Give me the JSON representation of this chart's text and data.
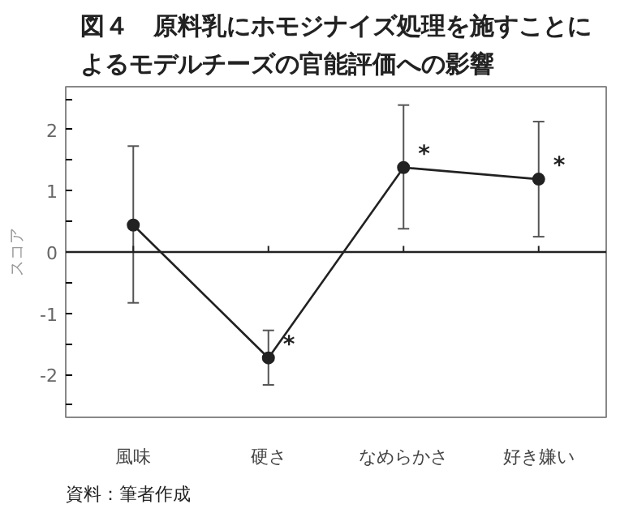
{
  "chart_data": {
    "type": "line",
    "title": "図４　原料乳にホモジナイズ処理を施すことによるモデルチーズの官能評価への影響",
    "ylabel": "スコア",
    "categories": [
      "風味",
      "硬さ",
      "なめらかさ",
      "好き嫌い"
    ],
    "series": [
      {
        "color": "#222222",
        "values": [
          0.44,
          -1.73,
          1.38,
          1.19
        ],
        "errors": [
          [
            -0.83,
            1.73
          ],
          [
            -2.17,
            -1.28
          ],
          [
            0.38,
            2.4
          ],
          [
            0.25,
            2.13
          ]
        ]
      }
    ],
    "marker": "circle",
    "line_style": "solid",
    "grid": false,
    "ylim": [
      -2.7,
      2.7
    ],
    "yticks": [
      -2,
      {
        "value": -2.5,
        "label": null
      },
      {
        "value": -1.5,
        "label": null
      },
      -1,
      {
        "value": -0.5,
        "label": null
      },
      0,
      {
        "value": 0.5,
        "label": null
      },
      1,
      {
        "value": 1.5,
        "label": null
      },
      2,
      {
        "value": 2.5,
        "label": null
      }
    ],
    "ref_lines": [
      {
        "axis": "y",
        "value": 0,
        "color": "#222222"
      }
    ],
    "annotations": [
      {
        "text": "*",
        "x": "硬さ",
        "y": -1.73
      },
      {
        "text": "*",
        "x": "なめらかさ",
        "y": 1.38
      },
      {
        "text": "*",
        "x": "好き嫌い",
        "y": 1.19
      },
      "資料：筆者作成"
    ]
  }
}
